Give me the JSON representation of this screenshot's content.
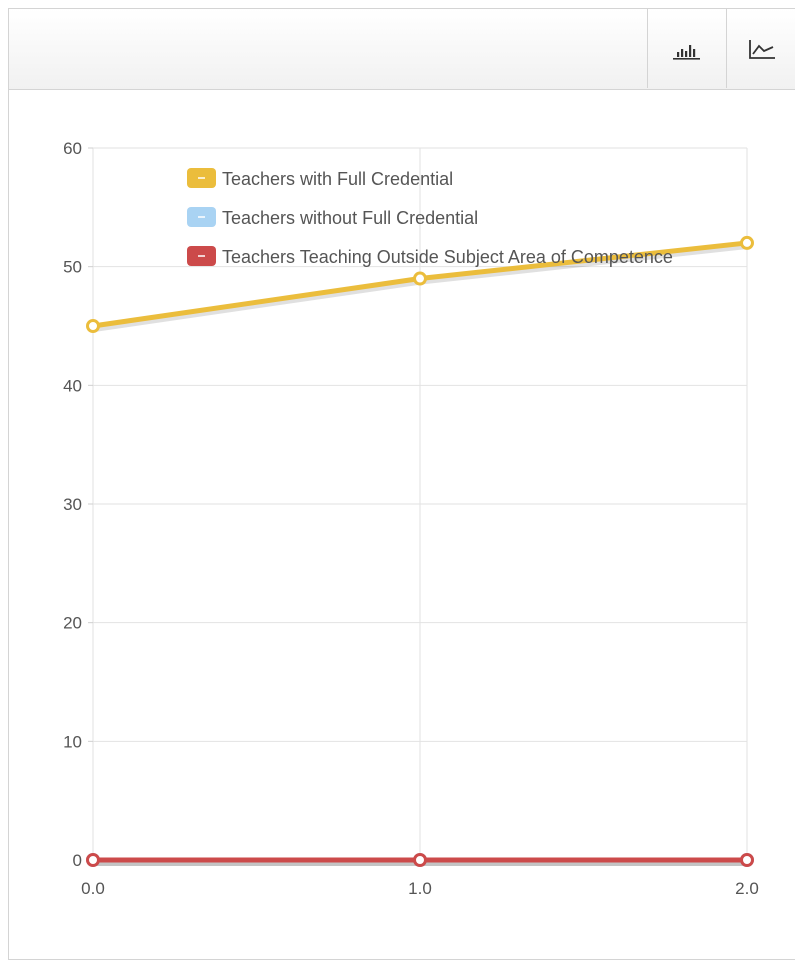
{
  "toolbar": {
    "buttons": [
      {
        "icon": "bar-chart-icon"
      },
      {
        "icon": "line-chart-icon"
      }
    ]
  },
  "chart_data": {
    "type": "line",
    "title": "",
    "xlabel": "",
    "ylabel": "",
    "x": [
      0,
      1,
      2
    ],
    "x_tick_labels": [
      "0.0",
      "1.0",
      "2.0"
    ],
    "y_ticks": [
      0,
      10,
      20,
      30,
      40,
      50,
      60
    ],
    "y_tick_labels": [
      "0",
      "10",
      "20",
      "30",
      "40",
      "50",
      "60"
    ],
    "xlim": [
      0,
      2
    ],
    "ylim": [
      0,
      60
    ],
    "grid": true,
    "legend_position": "top-left",
    "series": [
      {
        "name": "Teachers with Full Credential",
        "color": "#ebbd3c",
        "values": [
          45,
          49,
          52
        ]
      },
      {
        "name": "Teachers without Full Credential",
        "color": "#a9d3f3",
        "values": [
          0,
          0,
          0
        ]
      },
      {
        "name": "Teachers Teaching Outside Subject Area of Competence",
        "color": "#cc4a4a",
        "values": [
          0,
          0,
          0
        ]
      }
    ]
  }
}
